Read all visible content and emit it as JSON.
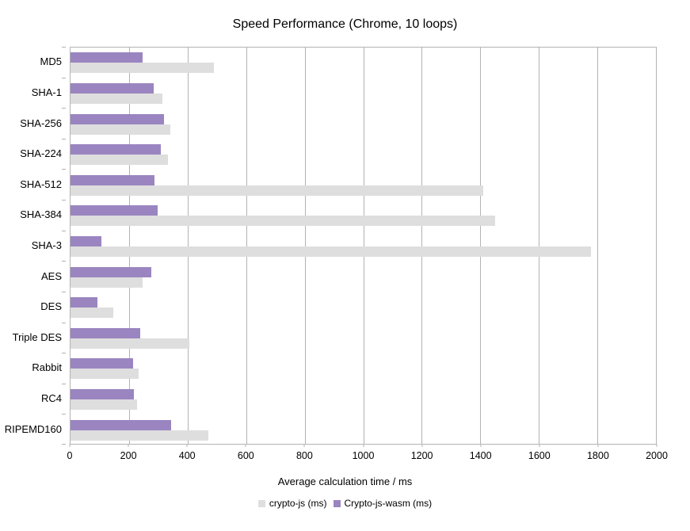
{
  "chart_data": {
    "type": "bar",
    "orientation": "horizontal",
    "title": "Speed Performance (Chrome, 10 loops)",
    "xlabel": "Average calculation time / ms",
    "categories": [
      "MD5",
      "SHA-1",
      "SHA-256",
      "SHA-224",
      "SHA-512",
      "SHA-384",
      "SHA-3",
      "AES",
      "DES",
      "Triple DES",
      "Rabbit",
      "RC4",
      "RIPEMD160"
    ],
    "series": [
      {
        "name": "crypto-js (ms)",
        "color": "#dedede",
        "values": [
          490,
          315,
          340,
          333,
          1410,
          1450,
          1777,
          247,
          146,
          406,
          232,
          227,
          470
        ]
      },
      {
        "name": "Crypto-js-wasm (ms)",
        "color": "#9a85c0",
        "values": [
          245,
          285,
          318,
          308,
          287,
          297,
          105,
          276,
          92,
          237,
          213,
          217,
          343
        ]
      }
    ],
    "xlim": [
      0,
      2000
    ],
    "x_ticks": [
      "0",
      "200",
      "400",
      "600",
      "800",
      "1000",
      "1200",
      "1400",
      "1600",
      "1800",
      "2000"
    ],
    "grid": "vertical",
    "gridline_color": "#b3b3b3",
    "legend_position": "bottom",
    "background": "#ffffff"
  }
}
